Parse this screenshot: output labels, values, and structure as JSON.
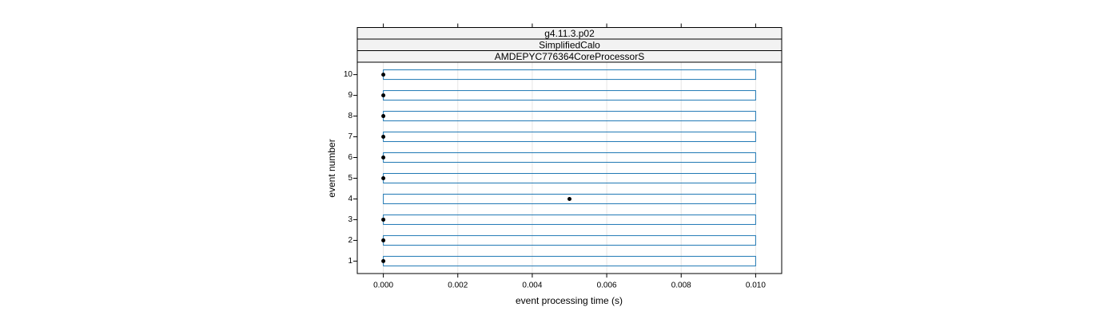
{
  "chart_data": {
    "type": "box",
    "strips": [
      "g4.11.3.p02",
      "SimplifiedCalo",
      "AMDEPYC776364CoreProcessorS"
    ],
    "x_label": "event processing time (s)",
    "y_label": "event number",
    "y": [
      1,
      2,
      3,
      4,
      5,
      6,
      7,
      8,
      9,
      10
    ],
    "values": [
      0,
      0,
      0,
      0.005,
      0,
      0,
      0,
      0,
      0,
      0
    ],
    "range_low": [
      0,
      0,
      0,
      0,
      0,
      0,
      0,
      0,
      0,
      0
    ],
    "range_high": [
      0.01,
      0.01,
      0.01,
      0.01,
      0.01,
      0.01,
      0.01,
      0.01,
      0.01,
      0.01
    ],
    "box_color": "#1f78b4",
    "point_color": "#000000",
    "xlim": [
      -0.0007,
      0.0107
    ],
    "ylim": [
      0.4,
      10.6
    ],
    "xticks": [
      {
        "value": 0,
        "label": "0.000"
      },
      {
        "value": 0.002,
        "label": "0.002"
      },
      {
        "value": 0.004,
        "label": "0.004"
      },
      {
        "value": 0.006,
        "label": "0.006"
      },
      {
        "value": 0.008,
        "label": "0.008"
      },
      {
        "value": 0.01,
        "label": "0.010"
      }
    ],
    "yticks": [
      1,
      2,
      3,
      4,
      5,
      6,
      7,
      8,
      9,
      10
    ],
    "grid": true
  }
}
